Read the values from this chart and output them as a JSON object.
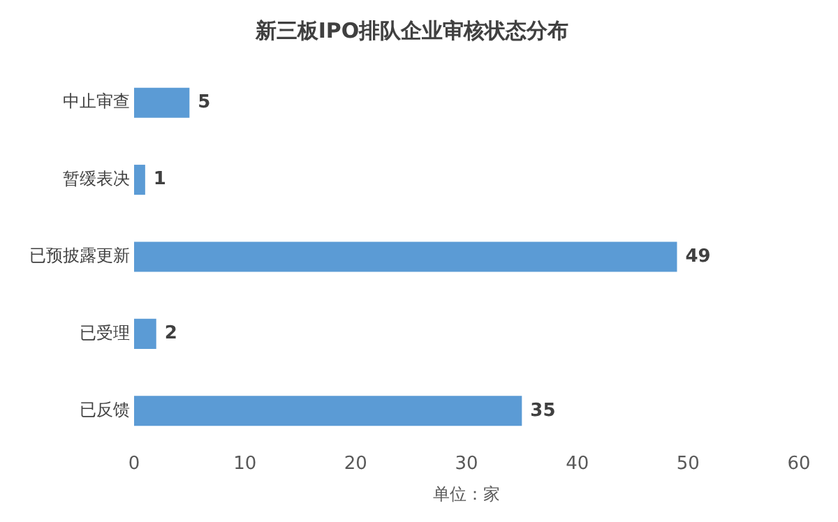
{
  "chart_data": {
    "type": "bar",
    "orientation": "horizontal",
    "title": "新三板IPO排队企业审核状态分布",
    "xlabel": "单位：家",
    "categories": [
      "中止审查",
      "暂缓表决",
      "已预披露更新",
      "已受理",
      "已反馈"
    ],
    "values": [
      5,
      1,
      49,
      2,
      35
    ],
    "color": "#5b9bd5",
    "xlim": [
      0,
      60
    ],
    "xticks": [
      0,
      10,
      20,
      30,
      40,
      50,
      60
    ],
    "grid": false,
    "legend": false,
    "data_labels": true
  }
}
